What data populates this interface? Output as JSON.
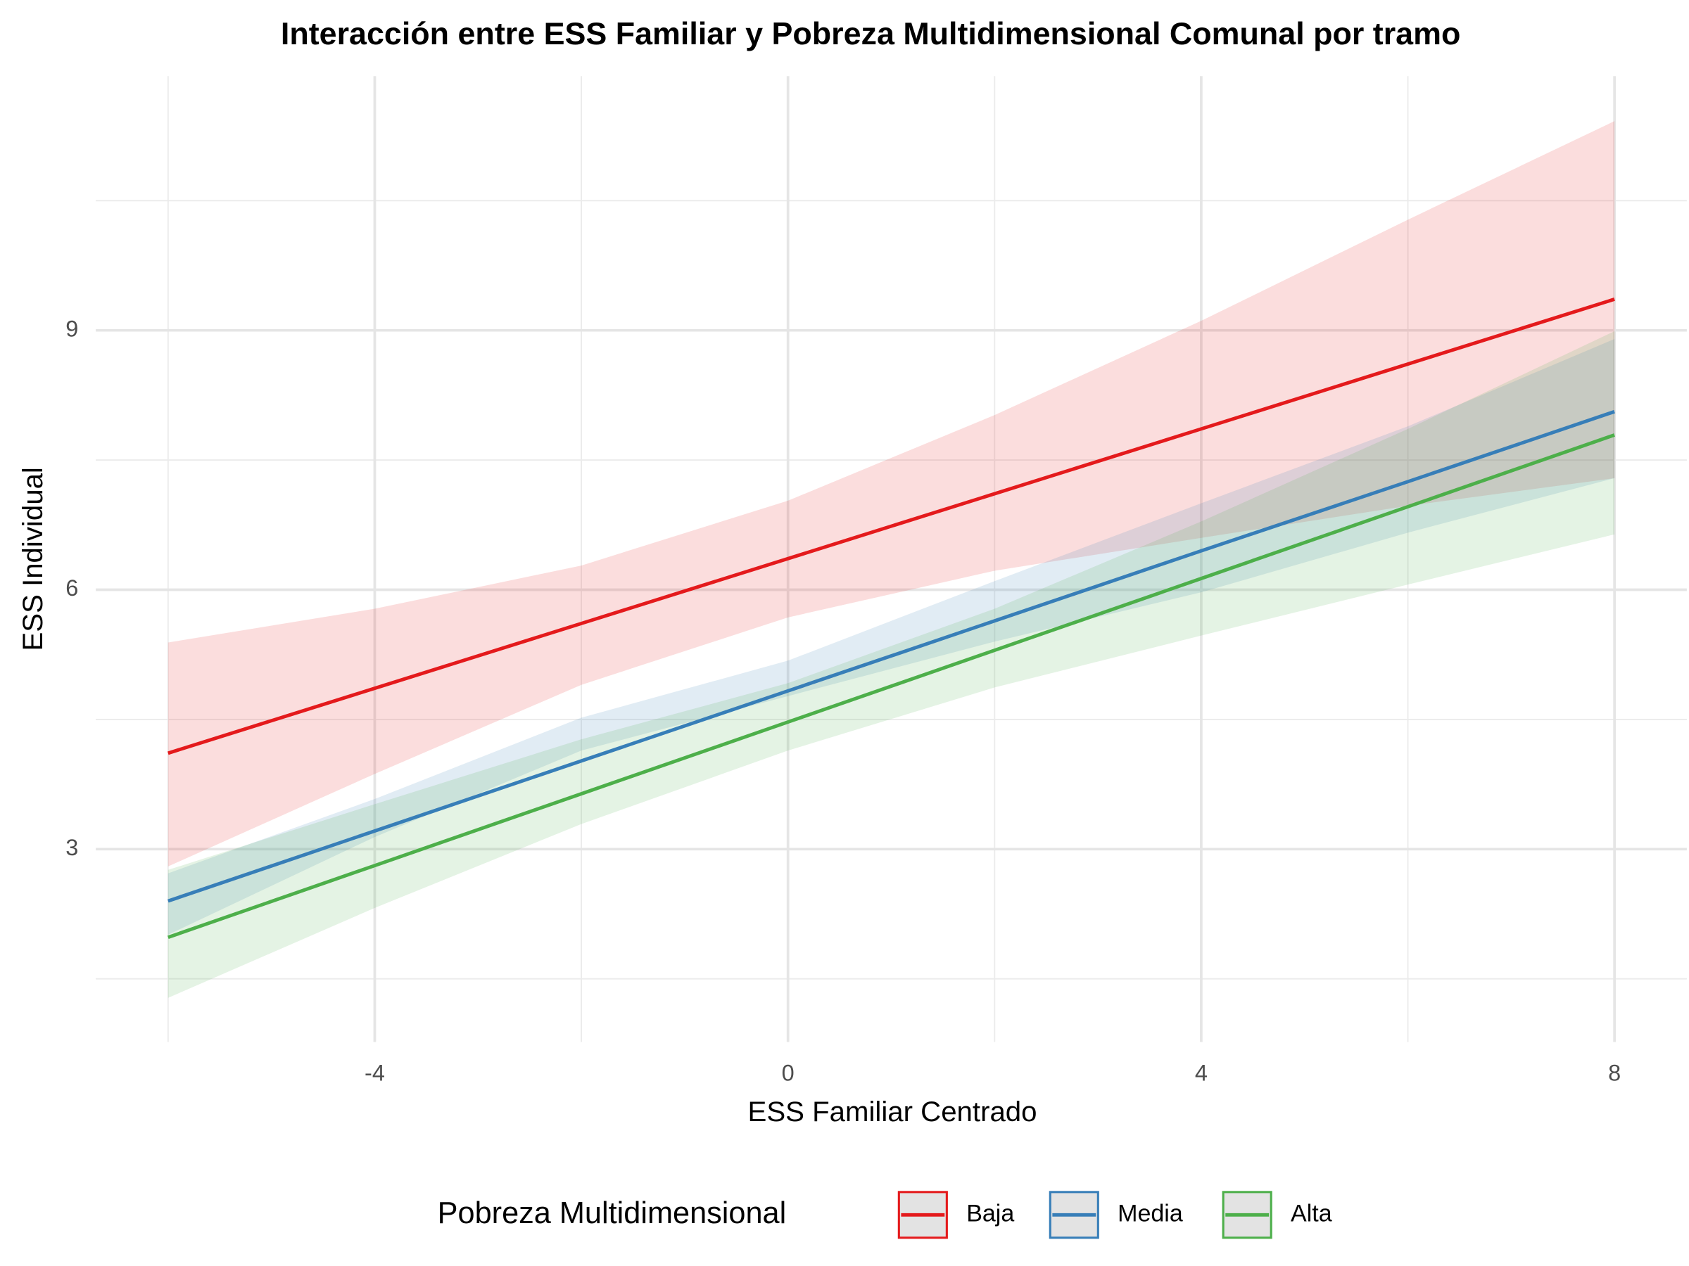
{
  "chart_data": {
    "type": "line",
    "title": "Interacción entre ESS Familiar y Pobreza Multidimensional Comunal por tramo",
    "x_label": "ESS Familiar Centrado",
    "y_label": "ESS Individual",
    "legend_title": "Pobreza Multidimensional",
    "legend_position": "bottom",
    "grid": true,
    "x": [
      -6,
      -4,
      -2,
      0,
      2,
      4,
      6,
      8
    ],
    "xlim": [
      -6.7,
      8.7
    ],
    "xticks": [
      -4,
      0,
      4,
      8
    ],
    "ylim": [
      0.77,
      11.94
    ],
    "yticks": [
      3,
      6,
      9
    ],
    "series": [
      {
        "name": "Baja",
        "color": "#e41a1c",
        "values": [
          4.11,
          4.86,
          5.61,
          6.36,
          7.11,
          7.86,
          8.61,
          9.36
        ],
        "upper": [
          5.39,
          5.78,
          6.28,
          7.03,
          8.02,
          9.11,
          10.28,
          11.42
        ],
        "lower": [
          2.8,
          3.87,
          4.9,
          5.68,
          6.22,
          6.6,
          6.97,
          7.29
        ]
      },
      {
        "name": "Media",
        "color": "#377eb8",
        "values": [
          2.4,
          3.21,
          4.02,
          4.83,
          5.64,
          6.45,
          7.25,
          8.06
        ],
        "upper": [
          2.72,
          3.58,
          4.52,
          5.18,
          6.1,
          7.0,
          7.89,
          8.9
        ],
        "lower": [
          2.01,
          3.14,
          4.14,
          4.77,
          5.4,
          5.97,
          6.66,
          7.29
        ]
      },
      {
        "name": "Alta",
        "color": "#4daf4a",
        "values": [
          1.98,
          2.81,
          3.64,
          4.47,
          5.3,
          6.13,
          6.96,
          7.79
        ],
        "upper": [
          2.76,
          3.52,
          4.27,
          4.92,
          5.78,
          6.79,
          7.86,
          8.99
        ],
        "lower": [
          1.28,
          2.32,
          3.29,
          4.14,
          4.87,
          5.47,
          6.06,
          6.64
        ]
      }
    ]
  }
}
